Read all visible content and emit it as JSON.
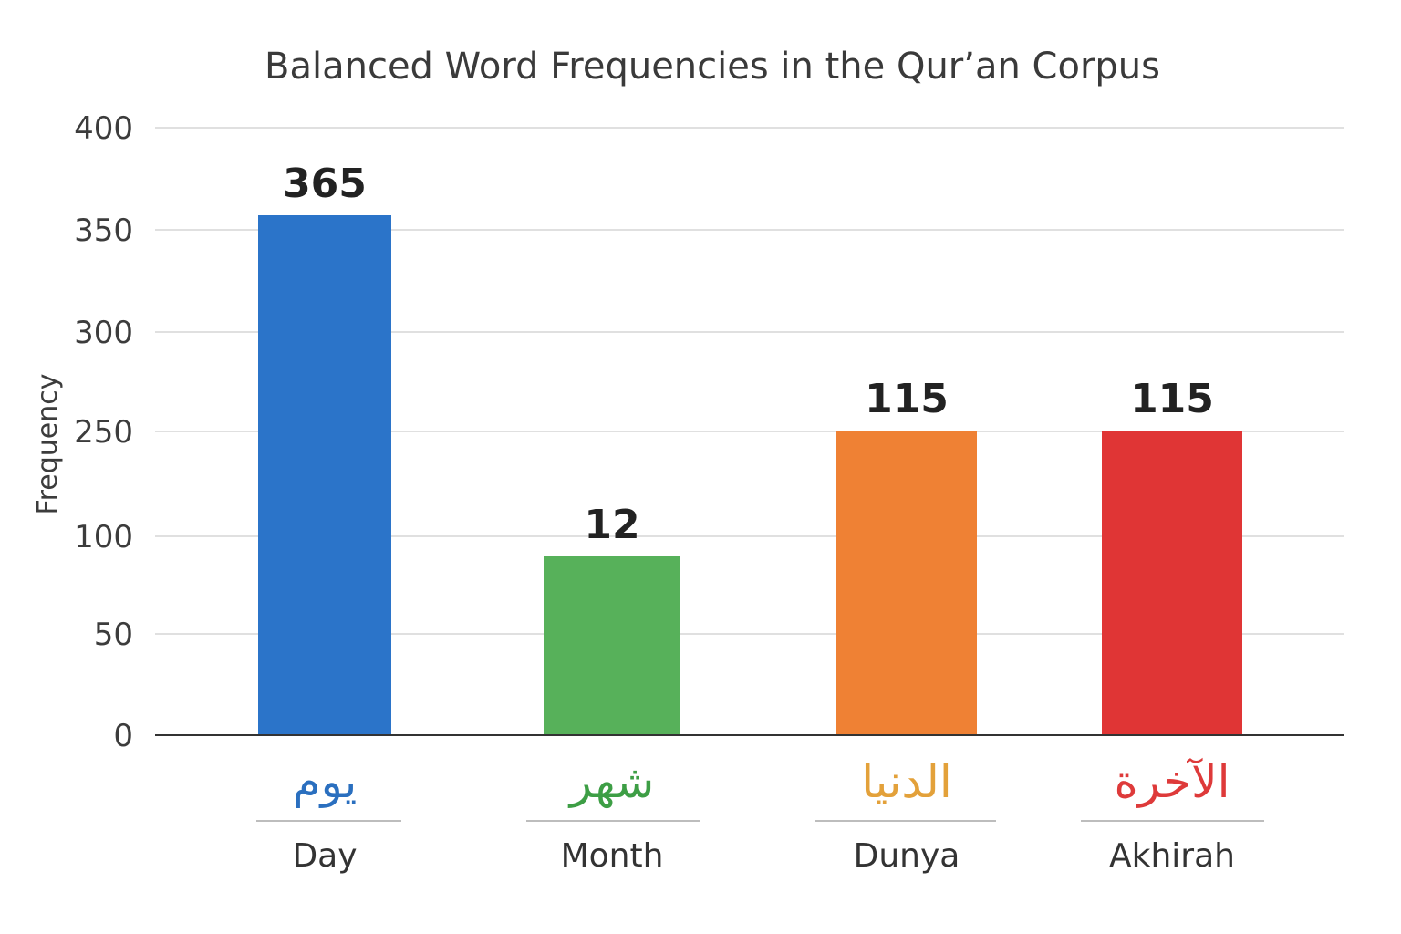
{
  "chart_data": {
    "type": "bar",
    "title": "Balanced Word Frequencies in the Qur’an Corpus",
    "ylabel": "Frequency",
    "xlabel": "",
    "y_ticks": [
      "0",
      "50",
      "100",
      "250",
      "300",
      "350",
      "400"
    ],
    "categories": [
      "Day",
      "Month",
      "Dunya",
      "Akhirah"
    ],
    "categories_arabic": [
      "يوم",
      "شهر",
      "الدنيا",
      "الآخرة"
    ],
    "values": [
      365,
      12,
      115,
      115
    ],
    "data_labels": [
      "365",
      "12",
      "115",
      "115"
    ],
    "colors": [
      "#2b74c9",
      "#57b15a",
      "#ef8134",
      "#e03535"
    ],
    "label_colors": [
      "#2a6fbf",
      "#3d9e45",
      "#e3a13a",
      "#de3a3a"
    ],
    "grid": true,
    "legend": "none"
  }
}
